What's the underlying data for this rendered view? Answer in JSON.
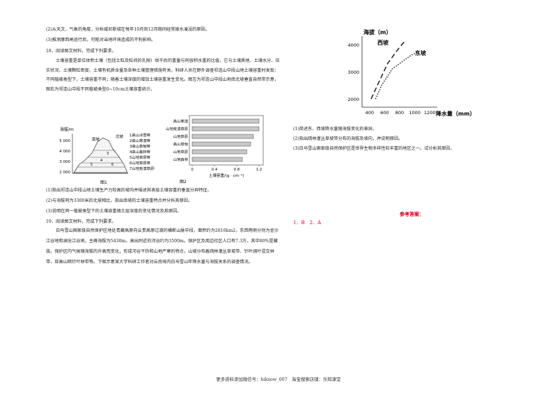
{
  "left": {
    "q17_sub2": "(2)从天文、气象的角度，分析威尼斯城在每年10月到12月期间经常被水淹没的原因。",
    "q17_sub3": "(3)推测摩西闸运行后，可能对当地环境造成的不利影响。",
    "q18_title": "18．阅读图文材料，完成下列要求。",
    "q18_para": "土壤容重是单位体积土壤（包括土粒及粒间的孔隙）烘干后的重量与同容积水重的比值，它与土壤质地、土壤水分、压实状况、土壤颗粒密度、土壤有机质含量及各种土壤管理措施有关。科研人员在野外调查祁连山中段山地土壤容重时发现：不同植被类型下，土壤容重不同；随着土壤深度的增加土壤容重发生变化。图左为祁连山中段山地南北坡垂直自然带示意，图右为祁连山中段不同植被类型0~10cm土壤容重统计。",
    "q18_sub1": "(1)指出祁连山中段山地土壤生产力较高的坡向并描述其表层土壤容重的垂直分异特征。",
    "q18_sub2": "(2)与海拔同为3300米的北坡相比，指出南坡的土壤容重特点并分析其原因。",
    "q18_sub3": "(3)说明在同一植被类型下的土壤容重随土层深度的变化情况及其原因。",
    "q19_title": "19．阅读图文材料，完成下列要求。",
    "q19_para": "白马雪山国家级自然保护区地处青藏高原向云贵高原过渡的横断山脉中段，面积约为2816km2，东西两侧分别为金沙江谷地和澜沧江谷地，主峰海拔为5430m，高出附近的河谷约为3500m。保护区及周边社区人口有7.3万，其中80%是藏族。保护区内气候随海拔的升高而变化，形成河谷干热和山地严寒的特点，山坡分布着疏林灌丛草坡带、针叶阔叶混交林带、亚高山暗针叶林带等。下图示意某大学科研工作者对云南境内白马雪山年降水量与海拔关系的调查情况。"
  },
  "fig1": {
    "ylabel": "海拔/m",
    "yticks": [
      "5 000",
      "4 000",
      "3 000",
      "2 000"
    ],
    "south": "南坡",
    "north": "北坡",
    "zones": [
      "1高山冰雪带",
      "2高山寒漠带",
      "3高山草甸带",
      "4高山森林带",
      "5山地草原带",
      "6山地草原带",
      "7山地荒漠草原带"
    ],
    "caption": "图1"
  },
  "fig2": {
    "caption": "图2",
    "xlabel": "土壤容重/(g · cm⁻³)",
    "chart_data": {
      "type": "bar",
      "categories": [
        "高山寒漠",
        "山地荒漠草原",
        "山地草原",
        "高山草甸",
        "山地草原",
        "山地森林"
      ],
      "values": [
        1.2,
        1.2,
        1.1,
        1.05,
        0.98,
        0.9
      ],
      "xlim": [
        0,
        1.2
      ],
      "xticks": [
        "0",
        "0.4",
        "0.8",
        "1.2"
      ],
      "xlabel": "土壤容重/(g · cm⁻³)"
    }
  },
  "fig3": {
    "ylabel": "海拔（m）",
    "xlabel": "降水量（mm）",
    "west": "西坡",
    "east": "东坡",
    "chart_data": {
      "type": "line",
      "yticks": [
        "4000",
        "3000",
        "2000"
      ],
      "xticks": [
        "400",
        "600",
        "800",
        "1000",
        "1200"
      ],
      "series": [
        {
          "name": "西坡",
          "points": [
            [
              420,
              2000
            ],
            [
              520,
              2600
            ],
            [
              640,
              3300
            ],
            [
              800,
              3900
            ],
            [
              880,
              4150
            ]
          ]
        },
        {
          "name": "东坡",
          "points": [
            [
              480,
              2000
            ],
            [
              560,
              2500
            ],
            [
              700,
              3100
            ],
            [
              950,
              3600
            ],
            [
              1060,
              3750
            ]
          ]
        }
      ]
    }
  },
  "right": {
    "q19_sub1": "(1)简述东、西坡降水量随海拔变化的差异。",
    "q19_sub2": "(2)指出疏林灌丛草坡带分布的海拔及坡向，并说明原因。",
    "q19_sub3": "(3)白马雪山国家级自然保护区是世界生物多样性较丰富的地区之一。试分析其原因。",
    "answer_title": "参考答案：",
    "answer_text": "1．B　2．A"
  },
  "footer": "更多资料添加微信号：hikxow_007　淘宝搜索店铺：乐知课堂"
}
